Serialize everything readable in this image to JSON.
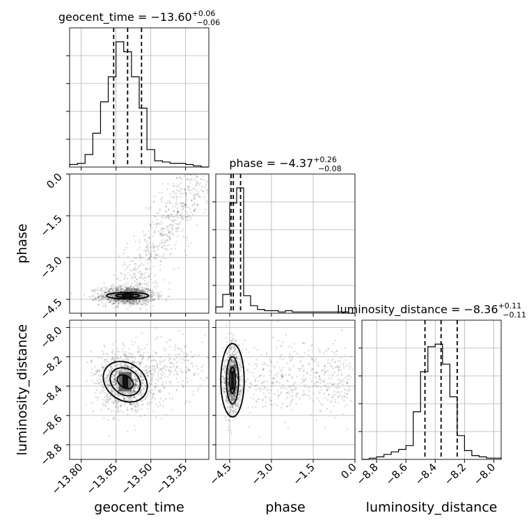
{
  "chart_data": {
    "type": "corner",
    "parameters": [
      {
        "name": "geocent_time",
        "label": "geocent_time",
        "title": "geocent_time = −13.60",
        "sup": "+0.06",
        "sub": "−0.06",
        "range": [
          -13.85,
          -13.25
        ],
        "ticks": [
          -13.8,
          -13.65,
          -13.5,
          -13.35
        ],
        "tick_labels": [
          "−13.80",
          "−13.65",
          "−13.50",
          "−13.35"
        ],
        "quantiles": [
          -13.66,
          -13.6,
          -13.54
        ],
        "hist": [
          0.02,
          0.03,
          0.1,
          0.27,
          0.52,
          0.72,
          1.0,
          0.92,
          0.72,
          0.47,
          0.14,
          0.05,
          0.04,
          0.03,
          0.03,
          0.02,
          0.01,
          0.0
        ]
      },
      {
        "name": "phase",
        "label": "phase",
        "title": "phase = −4.37",
        "sup": "+0.26",
        "sub": "−0.08",
        "range": [
          -5.0,
          0.0
        ],
        "ticks": [
          -4.5,
          -3.0,
          -1.5,
          0.0
        ],
        "tick_labels": [
          "−4.5",
          "−3.0",
          "−1.5",
          "0.0"
        ],
        "quantiles": [
          -4.45,
          -4.37,
          -4.11
        ],
        "hist": [
          0.05,
          0.15,
          0.88,
          1.0,
          0.14,
          0.06,
          0.03,
          0.02,
          0.02,
          0.01,
          0.02,
          0.01,
          0.01,
          0.01,
          0.01,
          0.01,
          0.01,
          0.01,
          0.01,
          0.0
        ]
      },
      {
        "name": "luminosity_distance",
        "label": "luminosity_distance",
        "title": "luminosity_distance = −8.36",
        "sup": "+0.11",
        "sub": "−0.11",
        "range": [
          -8.9,
          -7.95
        ],
        "ticks": [
          -8.8,
          -8.6,
          -8.4,
          -8.2,
          -8.0
        ],
        "tick_labels": [
          "−8.8",
          "−8.6",
          "−8.4",
          "−8.2",
          "−8.0"
        ],
        "quantiles": [
          -8.47,
          -8.36,
          -8.25
        ],
        "hist": [
          0.0,
          0.01,
          0.02,
          0.04,
          0.06,
          0.08,
          0.11,
          0.38,
          0.7,
          0.9,
          0.92,
          0.76,
          0.5,
          0.19,
          0.07,
          0.03,
          0.02,
          0.01,
          0.01
        ]
      }
    ],
    "pairs": [
      {
        "x": "geocent_time",
        "y": "phase",
        "center": [
          -13.6,
          -4.37
        ],
        "spread": [
          0.06,
          0.17
        ],
        "tail_to": [
          -13.3,
          -0.05
        ],
        "tail_fraction": 0.5,
        "contours": [
          [
            0.05,
            0.07
          ],
          [
            0.09,
            0.12
          ]
        ],
        "rotation_deg": 0
      },
      {
        "x": "geocent_time",
        "y": "luminosity_distance",
        "center": [
          -13.61,
          -8.37
        ],
        "spread": [
          0.06,
          0.1
        ],
        "tail_to": [
          -13.3,
          -8.25
        ],
        "tail_fraction": 0.25,
        "contours": [
          [
            0.025,
            0.06
          ],
          [
            0.055,
            0.11
          ],
          [
            0.08,
            0.16
          ]
        ],
        "rotation_deg": -55
      },
      {
        "x": "phase",
        "y": "luminosity_distance",
        "center": [
          -4.4,
          -8.36
        ],
        "spread": [
          0.15,
          0.11
        ],
        "tail_to": [
          -0.1,
          -8.35
        ],
        "tail_fraction": 0.45,
        "contours": [
          [
            0.1,
            0.09
          ],
          [
            0.22,
            0.16
          ],
          [
            0.42,
            0.25
          ]
        ],
        "rotation_deg": 0
      }
    ]
  }
}
